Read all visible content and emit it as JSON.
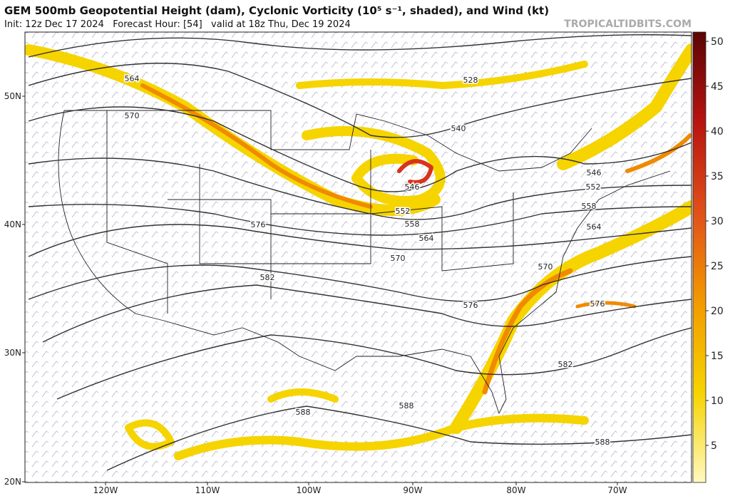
{
  "header": {
    "title": "GEM 500mb Geopotential Height (dam), Cyclonic Vorticity (10⁵ s⁻¹, shaded), and Wind (kt)",
    "init": "Init: 12z Dec 17 2024   Forecast Hour: [54]   valid at 18z Thu, Dec 19 2024",
    "site": "TROPICALTIDBITS.COM"
  },
  "map": {
    "lat_labels": [
      "50N",
      "40N",
      "30N",
      "20N"
    ],
    "lon_labels": [
      "120W",
      "110W",
      "100W",
      "90W",
      "80W",
      "70W"
    ],
    "contour_labels": [
      "564",
      "528",
      "570",
      "540",
      "546",
      "546",
      "552",
      "552",
      "558",
      "558",
      "576",
      "564",
      "564",
      "570",
      "570",
      "582",
      "576",
      "576",
      "582",
      "588",
      "588",
      "588"
    ]
  },
  "colorbar": {
    "ticks": [
      5,
      10,
      15,
      20,
      25,
      30,
      35,
      40,
      45,
      50
    ]
  }
}
